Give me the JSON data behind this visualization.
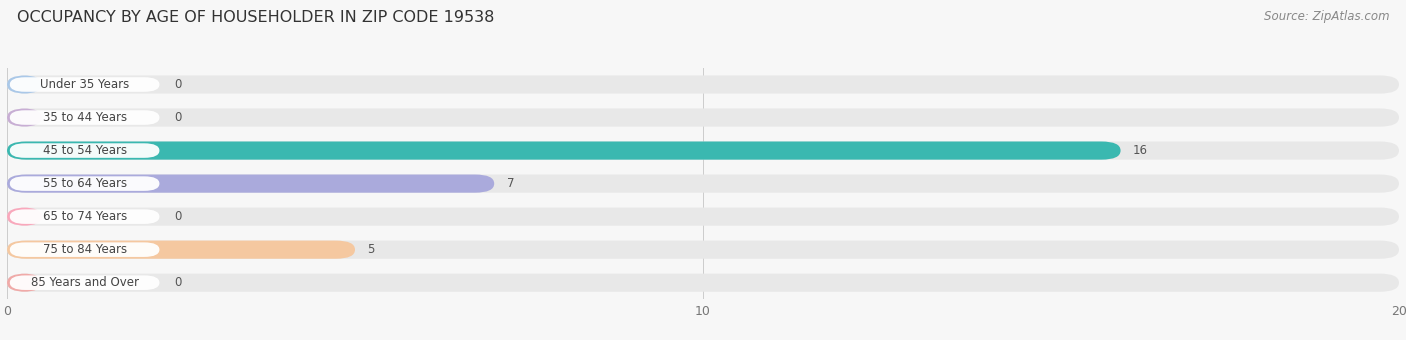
{
  "title": "OCCUPANCY BY AGE OF HOUSEHOLDER IN ZIP CODE 19538",
  "source": "Source: ZipAtlas.com",
  "categories": [
    "Under 35 Years",
    "35 to 44 Years",
    "45 to 54 Years",
    "55 to 64 Years",
    "65 to 74 Years",
    "75 to 84 Years",
    "85 Years and Over"
  ],
  "values": [
    0,
    0,
    16,
    7,
    0,
    5,
    0
  ],
  "bar_colors": [
    "#aac8e8",
    "#c8aed4",
    "#3ab8b0",
    "#aaaadc",
    "#f9a8bc",
    "#f5c8a0",
    "#f0aaa8"
  ],
  "bar_bg_color": "#e8e8e8",
  "label_bg_color": "#ffffff",
  "xlim_max": 20,
  "xticks": [
    0,
    10,
    20
  ],
  "bg_color": "#f7f7f7",
  "title_fontsize": 11.5,
  "source_fontsize": 8.5,
  "tick_fontsize": 9,
  "bar_label_fontsize": 8.5,
  "value_fontsize": 8.5
}
